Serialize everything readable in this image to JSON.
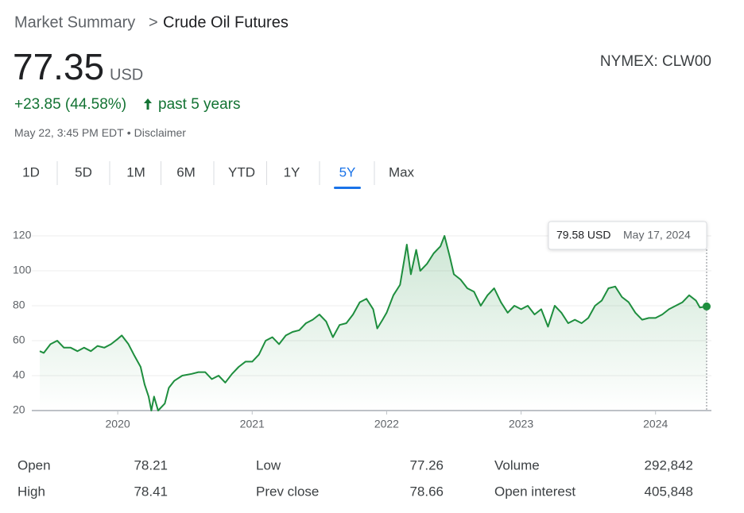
{
  "header": {
    "breadcrumb_root": "Market Summary",
    "separator": ">",
    "title": "Crude Oil Futures",
    "price": "77.35",
    "currency": "USD",
    "exchange": "NYMEX: CLW00",
    "change": "+23.85 (44.58%)",
    "period": "past 5 years",
    "timestamp": "May 22, 3:45 PM EDT",
    "bullet": "•",
    "disclaimer": "Disclaimer"
  },
  "tabs": [
    "1D",
    "5D",
    "1M",
    "6M",
    "YTD",
    "1Y",
    "5Y",
    "Max"
  ],
  "active_tab": 6,
  "chart_data": {
    "type": "line",
    "series": [
      {
        "name": "Crude Oil Futures",
        "color": "#1e8e3e",
        "x": [
          2019.42,
          2019.45,
          2019.5,
          2019.55,
          2019.6,
          2019.65,
          2019.7,
          2019.75,
          2019.8,
          2019.85,
          2019.9,
          2019.95,
          2020.0,
          2020.03,
          2020.08,
          2020.12,
          2020.17,
          2020.2,
          2020.23,
          2020.25,
          2020.27,
          2020.3,
          2020.35,
          2020.38,
          2020.42,
          2020.48,
          2020.55,
          2020.6,
          2020.65,
          2020.7,
          2020.75,
          2020.8,
          2020.85,
          2020.9,
          2020.95,
          2021.0,
          2021.05,
          2021.1,
          2021.15,
          2021.2,
          2021.25,
          2021.3,
          2021.35,
          2021.4,
          2021.45,
          2021.5,
          2021.55,
          2021.6,
          2021.65,
          2021.7,
          2021.75,
          2021.8,
          2021.85,
          2021.9,
          2021.93,
          2021.97,
          2022.0,
          2022.05,
          2022.1,
          2022.15,
          2022.18,
          2022.22,
          2022.25,
          2022.3,
          2022.35,
          2022.4,
          2022.43,
          2022.47,
          2022.5,
          2022.55,
          2022.6,
          2022.65,
          2022.7,
          2022.75,
          2022.8,
          2022.85,
          2022.9,
          2022.95,
          2023.0,
          2023.05,
          2023.1,
          2023.15,
          2023.2,
          2023.25,
          2023.3,
          2023.35,
          2023.4,
          2023.45,
          2023.5,
          2023.55,
          2023.6,
          2023.65,
          2023.7,
          2023.75,
          2023.8,
          2023.85,
          2023.9,
          2023.95,
          2024.0,
          2024.05,
          2024.1,
          2024.15,
          2024.2,
          2024.25,
          2024.3,
          2024.33,
          2024.38
        ],
        "values": [
          54,
          53,
          58,
          60,
          56,
          56,
          54,
          56,
          54,
          57,
          56,
          58,
          61,
          63,
          58,
          52,
          45,
          35,
          28,
          20,
          28,
          20,
          24,
          33,
          37,
          40,
          41,
          42,
          42,
          38,
          40,
          36,
          41,
          45,
          48,
          48,
          52,
          60,
          62,
          58,
          63,
          65,
          66,
          70,
          72,
          75,
          71,
          62,
          69,
          70,
          75,
          82,
          84,
          78,
          67,
          72,
          76,
          86,
          92,
          115,
          98,
          112,
          100,
          104,
          110,
          114,
          120,
          108,
          98,
          95,
          90,
          88,
          80,
          86,
          90,
          82,
          76,
          80,
          78,
          80,
          75,
          78,
          68,
          80,
          76,
          70,
          72,
          70,
          73,
          80,
          83,
          90,
          91,
          85,
          82,
          76,
          72,
          73,
          73,
          75,
          78,
          80,
          82,
          86,
          83,
          79,
          79.58
        ]
      }
    ],
    "xlim": [
      2019.42,
      2024.38
    ],
    "xticks": [
      2020,
      2021,
      2022,
      2023,
      2024
    ],
    "ylim": [
      20,
      120
    ],
    "yticks": [
      20,
      40,
      60,
      80,
      100,
      120
    ],
    "grid": true,
    "tooltip": {
      "price": "79.58 USD",
      "date": "May 17, 2024"
    }
  },
  "stats": {
    "rows": [
      [
        [
          "Open",
          "78.21"
        ],
        [
          "Low",
          "77.26"
        ],
        [
          "Volume",
          "292,842"
        ]
      ],
      [
        [
          "High",
          "78.41"
        ],
        [
          "Prev close",
          "78.66"
        ],
        [
          "Open interest",
          "405,848"
        ]
      ]
    ]
  }
}
